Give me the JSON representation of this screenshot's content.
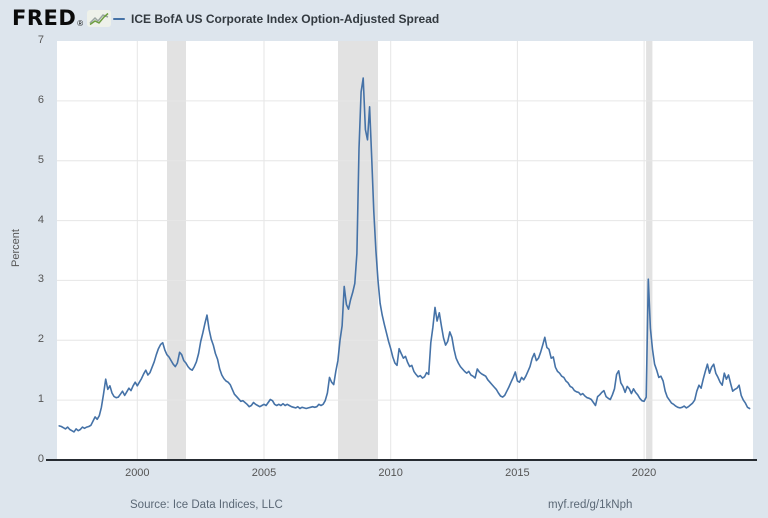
{
  "header": {
    "logo_text": "FRED",
    "registered_mark": "®",
    "legend_label": "ICE BofA US Corporate Index Option-Adjusted Spread"
  },
  "footer": {
    "source": "Source: Ice Data Indices, LLC",
    "link": "myf.red/g/1kNph"
  },
  "colors": {
    "background": "#dde5ed",
    "plot_background": "#ffffff",
    "gridline": "#e6e6e6",
    "recession_band": "#e2e2e2",
    "line": "#4572a7",
    "axis_line": "#262b31",
    "tick_label": "#555555",
    "footer_text": "#5b6876",
    "legend_text": "#333a40",
    "logo_text": "#0b0b0b",
    "logo_icon_green": "#6d9e3f",
    "logo_icon_gray": "#9aa5a1"
  },
  "chart_data": {
    "type": "line",
    "title": "ICE BofA US Corporate Index Option-Adjusted Spread",
    "xlabel": "",
    "ylabel": "Percent",
    "ylim": [
      0,
      7
    ],
    "xlim": [
      1996.83,
      2024.3
    ],
    "y_ticks": [
      0,
      1,
      2,
      3,
      4,
      5,
      6,
      7
    ],
    "x_ticks": [
      2000,
      2005,
      2010,
      2015,
      2020
    ],
    "grid": true,
    "legend_position": "top-left",
    "recession_bands": [
      {
        "start": 2001.17,
        "end": 2001.92
      },
      {
        "start": 2007.92,
        "end": 2009.5
      },
      {
        "start": 2020.08,
        "end": 2020.33
      }
    ],
    "series": {
      "name": "ICE BofA US Corporate Index Option-Adjusted Spread",
      "units": "Percent",
      "frequency": "monthly",
      "start_year": 1996.917,
      "step_years": 0.083333,
      "values": [
        0.57,
        0.56,
        0.54,
        0.52,
        0.55,
        0.51,
        0.49,
        0.47,
        0.52,
        0.49,
        0.51,
        0.55,
        0.53,
        0.55,
        0.56,
        0.58,
        0.65,
        0.72,
        0.68,
        0.74,
        0.88,
        1.1,
        1.35,
        1.18,
        1.24,
        1.12,
        1.06,
        1.04,
        1.05,
        1.1,
        1.15,
        1.08,
        1.14,
        1.2,
        1.16,
        1.24,
        1.3,
        1.24,
        1.3,
        1.36,
        1.44,
        1.5,
        1.42,
        1.46,
        1.55,
        1.64,
        1.76,
        1.86,
        1.93,
        1.96,
        1.84,
        1.76,
        1.72,
        1.66,
        1.6,
        1.56,
        1.62,
        1.8,
        1.76,
        1.66,
        1.62,
        1.56,
        1.52,
        1.5,
        1.56,
        1.64,
        1.78,
        1.98,
        2.12,
        2.28,
        2.42,
        2.18,
        2.02,
        1.92,
        1.78,
        1.68,
        1.52,
        1.42,
        1.36,
        1.32,
        1.3,
        1.26,
        1.18,
        1.1,
        1.06,
        1.02,
        0.98,
        0.99,
        0.96,
        0.93,
        0.89,
        0.91,
        0.96,
        0.93,
        0.91,
        0.89,
        0.91,
        0.93,
        0.91,
        0.96,
        1.01,
        0.99,
        0.93,
        0.91,
        0.93,
        0.91,
        0.94,
        0.91,
        0.93,
        0.91,
        0.89,
        0.88,
        0.87,
        0.89,
        0.86,
        0.88,
        0.87,
        0.86,
        0.87,
        0.88,
        0.89,
        0.88,
        0.89,
        0.93,
        0.91,
        0.93,
        0.99,
        1.12,
        1.38,
        1.3,
        1.26,
        1.48,
        1.66,
        2.0,
        2.24,
        2.9,
        2.6,
        2.52,
        2.68,
        2.8,
        2.95,
        3.45,
        5.2,
        6.15,
        6.38,
        5.52,
        5.35,
        5.9,
        5.05,
        4.15,
        3.5,
        3.0,
        2.62,
        2.42,
        2.26,
        2.12,
        1.98,
        1.86,
        1.72,
        1.62,
        1.58,
        1.86,
        1.78,
        1.7,
        1.73,
        1.63,
        1.56,
        1.58,
        1.48,
        1.43,
        1.39,
        1.41,
        1.37,
        1.39,
        1.46,
        1.43,
        1.96,
        2.22,
        2.55,
        2.32,
        2.46,
        2.24,
        2.04,
        1.92,
        1.98,
        2.14,
        2.05,
        1.85,
        1.7,
        1.62,
        1.56,
        1.52,
        1.48,
        1.45,
        1.48,
        1.42,
        1.4,
        1.37,
        1.52,
        1.47,
        1.44,
        1.42,
        1.4,
        1.34,
        1.3,
        1.26,
        1.22,
        1.18,
        1.12,
        1.07,
        1.05,
        1.08,
        1.15,
        1.22,
        1.3,
        1.38,
        1.47,
        1.32,
        1.3,
        1.38,
        1.34,
        1.4,
        1.48,
        1.56,
        1.7,
        1.78,
        1.66,
        1.7,
        1.8,
        1.92,
        2.05,
        1.88,
        1.85,
        1.7,
        1.72,
        1.55,
        1.48,
        1.45,
        1.4,
        1.38,
        1.32,
        1.29,
        1.23,
        1.21,
        1.16,
        1.14,
        1.13,
        1.09,
        1.11,
        1.07,
        1.04,
        1.03,
        1.01,
        0.96,
        0.91,
        1.06,
        1.09,
        1.13,
        1.16,
        1.06,
        1.03,
        1.01,
        1.09,
        1.19,
        1.43,
        1.49,
        1.29,
        1.23,
        1.13,
        1.23,
        1.19,
        1.11,
        1.19,
        1.13,
        1.09,
        1.03,
        0.99,
        0.98,
        1.05,
        3.02,
        2.2,
        1.85,
        1.6,
        1.5,
        1.38,
        1.4,
        1.32,
        1.15,
        1.05,
        1.0,
        0.95,
        0.93,
        0.9,
        0.88,
        0.87,
        0.88,
        0.9,
        0.87,
        0.89,
        0.92,
        0.95,
        1.0,
        1.15,
        1.25,
        1.2,
        1.35,
        1.48,
        1.6,
        1.45,
        1.55,
        1.6,
        1.45,
        1.38,
        1.3,
        1.25,
        1.45,
        1.35,
        1.42,
        1.28,
        1.15,
        1.18,
        1.2,
        1.25,
        1.08,
        1.0,
        0.95,
        0.88,
        0.86
      ]
    }
  }
}
